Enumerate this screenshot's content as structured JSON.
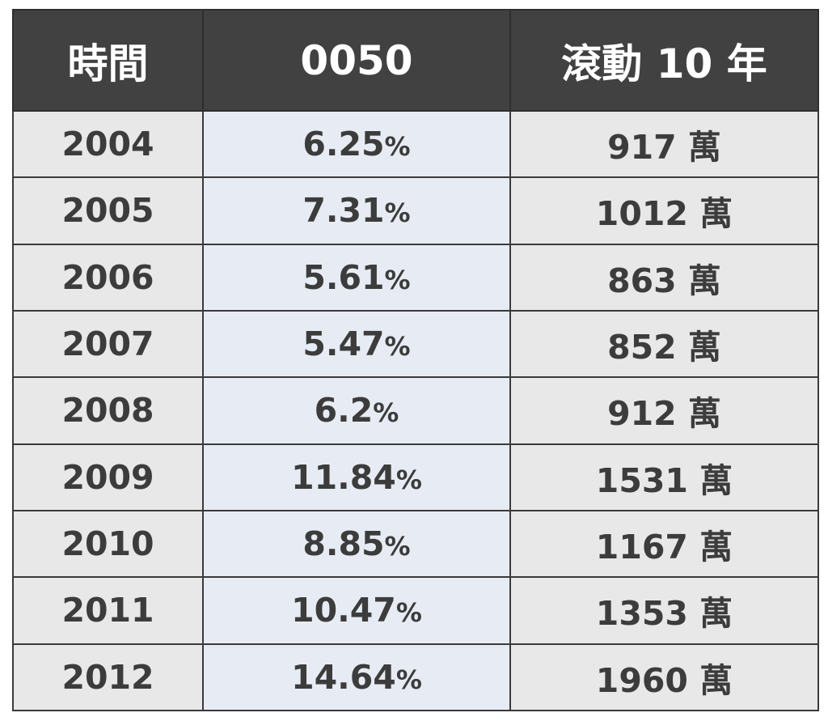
{
  "table": {
    "headers": [
      "時間",
      "0050",
      "滾動 10 年"
    ],
    "rows": [
      {
        "year": "2004",
        "return_value": "6.25",
        "return_unit": "%",
        "amount": "917 萬"
      },
      {
        "year": "2005",
        "return_value": "7.31",
        "return_unit": "%",
        "amount": "1012 萬"
      },
      {
        "year": "2006",
        "return_value": "5.61",
        "return_unit": "%",
        "amount": "863 萬"
      },
      {
        "year": "2007",
        "return_value": "5.47",
        "return_unit": "%",
        "amount": "852 萬"
      },
      {
        "year": "2008",
        "return_value": "6.2",
        "return_unit": "%",
        "amount": "912 萬"
      },
      {
        "year": "2009",
        "return_value": "11.84",
        "return_unit": "%",
        "amount": "1531 萬"
      },
      {
        "year": "2010",
        "return_value": "8.85",
        "return_unit": "%",
        "amount": "1167 萬"
      },
      {
        "year": "2011",
        "return_value": "10.47",
        "return_unit": "%",
        "amount": "1353 萬"
      },
      {
        "year": "2012",
        "return_value": "14.64",
        "return_unit": "%",
        "amount": "1960 萬"
      }
    ]
  },
  "colors": {
    "header_bg": "#414141",
    "header_text": "#ffffff",
    "year_amount_bg": "#e8e8e8",
    "return_bg": "#e7ecf4",
    "cell_text": "#3c3c3c",
    "border": "#3a3a3a"
  }
}
